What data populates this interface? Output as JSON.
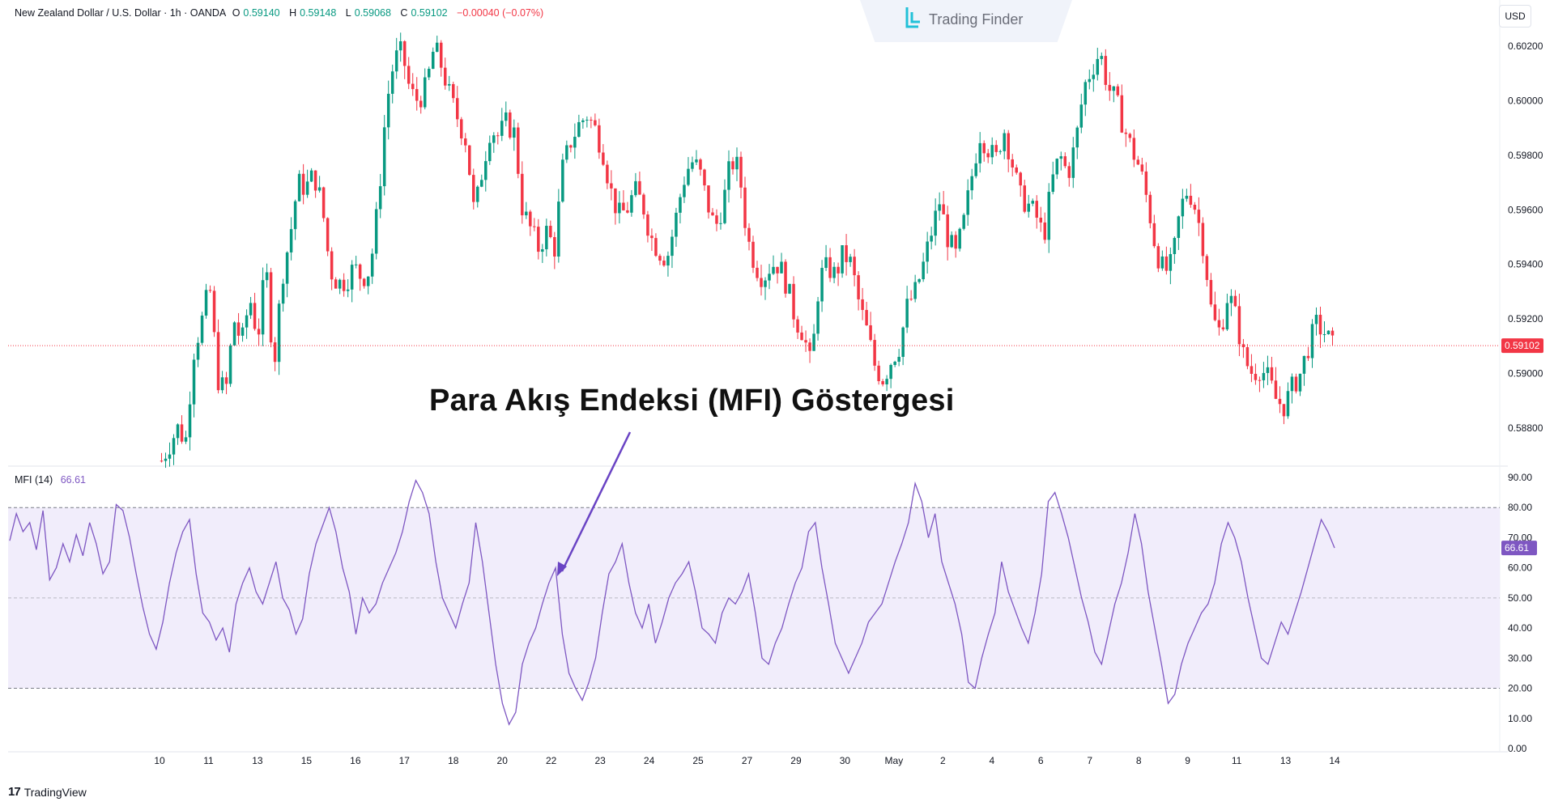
{
  "header": {
    "symbol": "New Zealand Dollar / U.S. Dollar · 1h · OANDA",
    "open_label": "O",
    "open": "0.59140",
    "high_label": "H",
    "high": "0.59148",
    "low_label": "L",
    "low": "0.59068",
    "close_label": "C",
    "close": "0.59102",
    "change": "−0.00040 (−0.07%)"
  },
  "logo": {
    "text": "Trading Finder"
  },
  "currency_button": "USD",
  "annotation": "Para Akış Endeksi (MFI) Göstergesi",
  "mfi": {
    "label": "MFI (14)",
    "value": "66.61"
  },
  "branding": {
    "mark": "17",
    "text": "TradingView"
  },
  "colors": {
    "up": "#089981",
    "down": "#f23645",
    "mfi_line": "#7e57c2",
    "mfi_band": "#f1edfb",
    "price_tag": "#f23645",
    "mfi_tag": "#7e57c2"
  },
  "chart_data": [
    {
      "type": "candlestick",
      "title": "New Zealand Dollar / U.S. Dollar · 1h · OANDA",
      "y_ticks": [
        "0.60200",
        "0.60000",
        "0.59800",
        "0.59600",
        "0.59400",
        "0.59200",
        "0.59000",
        "0.58800"
      ],
      "ylim": [
        0.5866,
        0.6034
      ],
      "current_price": "0.59102",
      "x_ticks": [
        "10",
        "11",
        "13",
        "15",
        "16",
        "17",
        "18",
        "20",
        "22",
        "23",
        "24",
        "25",
        "27",
        "29",
        "30",
        "May",
        "2",
        "4",
        "6",
        "7",
        "8",
        "9",
        "11",
        "13",
        "14"
      ],
      "close_path": [
        [
          0.0,
          0.5868
        ],
        [
          2.0,
          0.588
        ],
        [
          3.0,
          0.5875
        ],
        [
          4.0,
          0.5908
        ],
        [
          5.0,
          0.5919
        ],
        [
          6.0,
          0.5932
        ],
        [
          7.0,
          0.5898
        ],
        [
          8.0,
          0.5893
        ],
        [
          9.0,
          0.592
        ],
        [
          10.0,
          0.5911
        ],
        [
          11.0,
          0.5928
        ],
        [
          12.0,
          0.5913
        ],
        [
          13.0,
          0.594
        ],
        [
          14.0,
          0.5902
        ],
        [
          15.0,
          0.5935
        ],
        [
          16.0,
          0.595
        ],
        [
          17.0,
          0.597
        ],
        [
          18.0,
          0.5968
        ],
        [
          19.0,
          0.5973
        ],
        [
          20.0,
          0.5962
        ],
        [
          21.0,
          0.5938
        ],
        [
          22.0,
          0.5933
        ],
        [
          23.0,
          0.5934
        ],
        [
          24.0,
          0.5939
        ],
        [
          25.0,
          0.5935
        ],
        [
          26.0,
          0.5938
        ],
        [
          27.0,
          0.5962
        ],
        [
          28.0,
          0.5998
        ],
        [
          29.0,
          0.6015
        ],
        [
          30.0,
          0.6018
        ],
        [
          31.0,
          0.6003
        ],
        [
          32.0,
          0.6
        ],
        [
          33.0,
          0.6005
        ],
        [
          34.0,
          0.602
        ],
        [
          35.0,
          0.6012
        ],
        [
          36.0,
          0.6001
        ],
        [
          37.0,
          0.5993
        ],
        [
          38.0,
          0.5985
        ],
        [
          39.0,
          0.5958
        ],
        [
          40.0,
          0.5975
        ],
        [
          41.0,
          0.599
        ],
        [
          42.0,
          0.5987
        ],
        [
          43.0,
          0.5992
        ],
        [
          44.0,
          0.5988
        ],
        [
          45.0,
          0.596
        ],
        [
          46.0,
          0.5953
        ],
        [
          47.0,
          0.5946
        ],
        [
          48.0,
          0.5952
        ],
        [
          49.0,
          0.5946
        ],
        [
          50.0,
          0.5975
        ],
        [
          51.0,
          0.5985
        ],
        [
          52.0,
          0.5991
        ],
        [
          53.0,
          0.5995
        ],
        [
          54.0,
          0.599
        ],
        [
          55.0,
          0.5982
        ],
        [
          56.0,
          0.5967
        ],
        [
          57.0,
          0.5958
        ],
        [
          58.0,
          0.596
        ],
        [
          59.0,
          0.5967
        ],
        [
          60.0,
          0.5962
        ],
        [
          61.0,
          0.595
        ],
        [
          62.0,
          0.5945
        ],
        [
          63.0,
          0.5942
        ],
        [
          64.0,
          0.5955
        ],
        [
          65.0,
          0.597
        ],
        [
          66.0,
          0.5978
        ],
        [
          67.0,
          0.5975
        ],
        [
          68.0,
          0.5963
        ],
        [
          69.0,
          0.5953
        ],
        [
          70.0,
          0.5962
        ],
        [
          71.0,
          0.5978
        ],
        [
          72.0,
          0.5975
        ],
        [
          73.0,
          0.595
        ],
        [
          74.0,
          0.594
        ],
        [
          75.0,
          0.5935
        ],
        [
          76.0,
          0.594
        ],
        [
          77.0,
          0.594
        ],
        [
          78.0,
          0.5932
        ],
        [
          79.0,
          0.592
        ],
        [
          80.0,
          0.5915
        ],
        [
          81.0,
          0.5902
        ],
        [
          82.0,
          0.5935
        ],
        [
          83.0,
          0.5939
        ],
        [
          84.0,
          0.5936
        ],
        [
          85.0,
          0.5944
        ],
        [
          86.0,
          0.594
        ],
        [
          87.0,
          0.5925
        ],
        [
          88.0,
          0.5915
        ],
        [
          89.0,
          0.5902
        ],
        [
          90.0,
          0.5898
        ],
        [
          91.0,
          0.5905
        ],
        [
          92.0,
          0.591
        ],
        [
          93.0,
          0.5925
        ],
        [
          94.0,
          0.593
        ],
        [
          95.0,
          0.594
        ],
        [
          96.0,
          0.5952
        ],
        [
          97.0,
          0.5963
        ],
        [
          98.0,
          0.595
        ],
        [
          99.0,
          0.5943
        ],
        [
          100.0,
          0.5955
        ],
        [
          101.0,
          0.5972
        ],
        [
          102.0,
          0.5988
        ],
        [
          103.0,
          0.5983
        ],
        [
          104.0,
          0.5978
        ],
        [
          105.0,
          0.599
        ],
        [
          106.0,
          0.5978
        ],
        [
          107.0,
          0.5965
        ],
        [
          108.0,
          0.5962
        ],
        [
          109.0,
          0.5958
        ],
        [
          110.0,
          0.595
        ],
        [
          111.0,
          0.597
        ],
        [
          112.0,
          0.598
        ],
        [
          113.0,
          0.5973
        ],
        [
          114.0,
          0.5985
        ],
        [
          115.0,
          0.6005
        ],
        [
          116.0,
          0.6012
        ],
        [
          117.0,
          0.6018
        ],
        [
          118.0,
          0.6005
        ],
        [
          119.0,
          0.6
        ],
        [
          120.0,
          0.599
        ],
        [
          121.0,
          0.5982
        ],
        [
          122.0,
          0.5975
        ],
        [
          123.0,
          0.5962
        ],
        [
          124.0,
          0.5945
        ],
        [
          125.0,
          0.5937
        ],
        [
          126.0,
          0.594
        ],
        [
          127.0,
          0.596
        ],
        [
          128.0,
          0.5968
        ],
        [
          129.0,
          0.596
        ],
        [
          130.0,
          0.5945
        ],
        [
          131.0,
          0.592
        ],
        [
          132.0,
          0.5915
        ],
        [
          133.0,
          0.593
        ],
        [
          134.0,
          0.592
        ],
        [
          135.0,
          0.5905
        ],
        [
          136.0,
          0.59
        ],
        [
          137.0,
          0.5902
        ],
        [
          138.0,
          0.5898
        ],
        [
          139.0,
          0.589
        ],
        [
          140.0,
          0.5888
        ],
        [
          141.0,
          0.5895
        ],
        [
          142.0,
          0.59
        ],
        [
          143.0,
          0.591
        ],
        [
          144.0,
          0.5918
        ],
        [
          145.0,
          0.5915
        ],
        [
          146.0,
          0.591
        ]
      ],
      "x_per_day": 6,
      "x_tick_positions": [
        0,
        6,
        12,
        18,
        24,
        30,
        36,
        42,
        48,
        54,
        60,
        66,
        72,
        78,
        84,
        90,
        96,
        102,
        108,
        114,
        120,
        126,
        132,
        138,
        144
      ]
    },
    {
      "type": "line",
      "title": "MFI (14)",
      "y_ticks": [
        "90.00",
        "80.00",
        "70.00",
        "60.00",
        "50.00",
        "40.00",
        "30.00",
        "20.00",
        "10.00",
        "0.00"
      ],
      "ylim": [
        0,
        90
      ],
      "bands": {
        "upper": 80,
        "middle": 50,
        "lower": 20
      },
      "current_value": "66.61",
      "values": [
        69,
        78,
        72,
        75,
        66,
        79,
        56,
        60,
        68,
        62,
        71,
        64,
        75,
        68,
        58,
        62,
        81,
        79,
        70,
        58,
        47,
        38,
        33,
        42,
        55,
        65,
        72,
        76,
        58,
        45,
        42,
        36,
        40,
        32,
        48,
        55,
        60,
        52,
        48,
        55,
        62,
        50,
        46,
        38,
        43,
        58,
        68,
        74,
        80,
        72,
        60,
        52,
        38,
        50,
        45,
        48,
        55,
        60,
        65,
        72,
        82,
        89,
        85,
        78,
        62,
        50,
        45,
        40,
        48,
        55,
        75,
        62,
        45,
        28,
        15,
        8,
        12,
        28,
        35,
        40,
        48,
        55,
        60,
        38,
        25,
        20,
        16,
        22,
        30,
        45,
        58,
        62,
        68,
        55,
        45,
        40,
        48,
        35,
        42,
        50,
        55,
        58,
        62,
        52,
        40,
        38,
        35,
        45,
        50,
        48,
        52,
        58,
        45,
        30,
        28,
        35,
        40,
        48,
        55,
        60,
        72,
        75,
        60,
        48,
        35,
        30,
        25,
        30,
        35,
        42,
        45,
        48,
        55,
        62,
        68,
        75,
        88,
        82,
        70,
        78,
        62,
        55,
        48,
        38,
        22,
        20,
        30,
        38,
        45,
        62,
        52,
        46,
        40,
        35,
        45,
        58,
        82,
        85,
        78,
        70,
        60,
        50,
        42,
        32,
        28,
        38,
        48,
        55,
        65,
        78,
        68,
        52,
        40,
        28,
        15,
        18,
        28,
        35,
        40,
        45,
        48,
        55,
        68,
        75,
        70,
        62,
        50,
        40,
        30,
        28,
        35,
        42,
        38,
        45,
        52,
        60,
        68,
        76,
        72,
        66.61
      ]
    }
  ]
}
